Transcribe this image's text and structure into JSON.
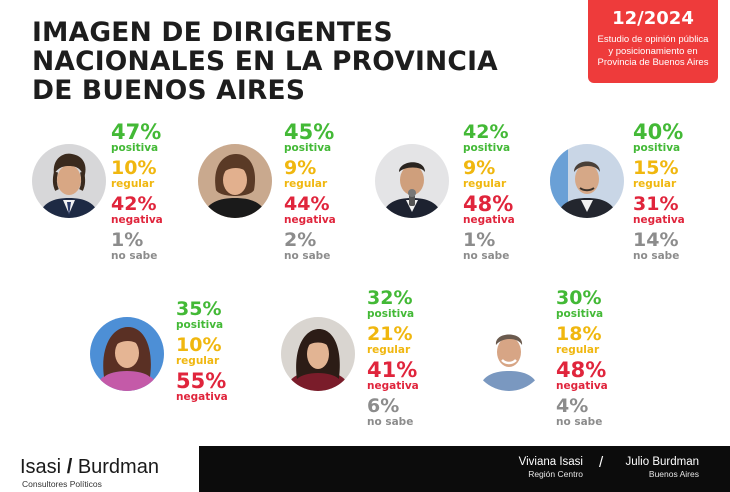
{
  "title_lines": [
    "IMAGEN DE DIRIGENTES",
    "NACIONALES EN LA PROVINCIA",
    "DE BUENOS AIRES"
  ],
  "date_box": {
    "date": "12/2024",
    "description_lines": [
      "Estudio de opinión pública",
      "y posicionamiento en",
      "Provincia de Buenos Aires"
    ]
  },
  "colors": {
    "positiva": "#43b936",
    "regular": "#f0b70f",
    "negativa": "#e0253c",
    "no_sabe": "#8c8c8c",
    "accent_red": "#ee3b3b",
    "footer_bar": "#0c0c0c"
  },
  "chart_data": {
    "type": "table",
    "columns": [
      "positiva",
      "regular",
      "negativa",
      "no sabe"
    ],
    "rows": [
      {
        "positiva": "47%",
        "regular": "10%",
        "negativa": "42%",
        "no_sabe": "1%"
      },
      {
        "positiva": "45%",
        "regular": "9%",
        "negativa": "44%",
        "no_sabe": "2%"
      },
      {
        "positiva": "42%",
        "regular": "9%",
        "negativa": "48%",
        "no_sabe": "1%"
      },
      {
        "positiva": "40%",
        "regular": "15%",
        "negativa": "31%",
        "no_sabe": "14%"
      },
      {
        "positiva": "35%",
        "regular": "10%",
        "negativa": "55%",
        "no_sabe": null
      },
      {
        "positiva": "32%",
        "regular": "21%",
        "negativa": "41%",
        "no_sabe": "6%"
      },
      {
        "positiva": "30%",
        "regular": "18%",
        "negativa": "48%",
        "no_sabe": "4%"
      }
    ]
  },
  "labels": {
    "positiva": "positiva",
    "regular": "regular",
    "negativa": "negativa",
    "no_sabe": "no sabe"
  },
  "footer": {
    "brand_left": "Isasi",
    "brand_sep": "/",
    "brand_right": "Burdman",
    "brand_sub": "Consultores Políticos",
    "authors": [
      {
        "name": "Viviana Isasi",
        "place": "Región Centro"
      },
      {
        "name": "Julio Burdman",
        "place": "Buenos Aires"
      }
    ],
    "separator": "/"
  }
}
